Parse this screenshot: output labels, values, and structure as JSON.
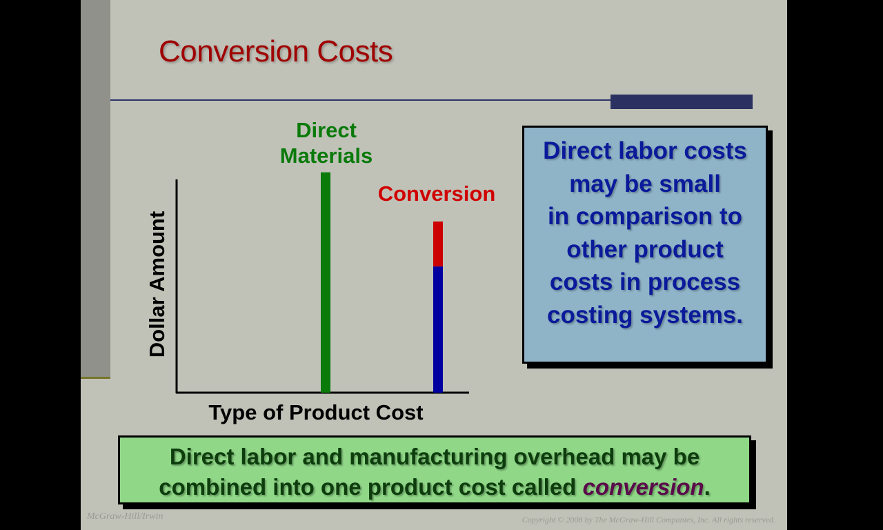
{
  "slide": {
    "title": "Conversion Costs",
    "callout_lines": [
      "Direct labor costs",
      "may be small",
      "in comparison to",
      "other product",
      "costs in process",
      "costing systems."
    ],
    "note_text": "Direct labor and manufacturing overhead may be combined into one product cost called ",
    "note_emphasis": "conversion",
    "note_end": ".",
    "publisher": "McGraw-Hill/Irwin",
    "copyright": "Copyright © 2008 by The McGraw-Hill Companies, Inc. All rights reserved."
  },
  "chart_data": {
    "type": "bar",
    "stacked": true,
    "xlabel": "Type of Product Cost",
    "ylabel": "Dollar Amount",
    "categories": [
      "Direct Materials",
      "Conversion"
    ],
    "category_colors": [
      "#0a7a0a",
      "#d00000"
    ],
    "series": [
      {
        "color": "#0a7a0a",
        "values": [
          1.03,
          0
        ]
      },
      {
        "color": "#0000a0",
        "values": [
          0,
          0.59
        ]
      },
      {
        "color": "#cc0000",
        "values": [
          0,
          0.21
        ]
      }
    ],
    "ylim": [
      0,
      1
    ],
    "grid": false,
    "ticks": false
  }
}
